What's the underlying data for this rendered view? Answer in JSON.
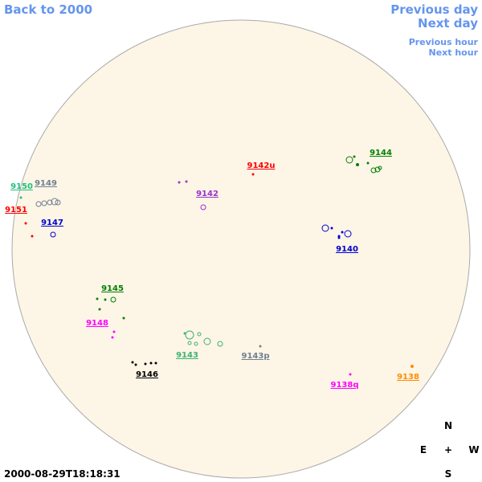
{
  "nav": {
    "back": "Back to 2000",
    "prev_day": "Previous day",
    "next_day": "Next day",
    "prev_hour": "Previous hour",
    "next_hour": "Next hour"
  },
  "regions": [
    {
      "label": "9144",
      "color": "#008000"
    },
    {
      "label": "9142u",
      "color": "#ff0000"
    },
    {
      "label": "9149",
      "color": "#708090"
    },
    {
      "label": "9150",
      "color": "#20c080"
    },
    {
      "label": "9142",
      "color": "#9932cc"
    },
    {
      "label": "9151",
      "color": "#ff0000"
    },
    {
      "label": "9147",
      "color": "#0000cd"
    },
    {
      "label": "9140",
      "color": "#0000cd"
    },
    {
      "label": "9145",
      "color": "#008000"
    },
    {
      "label": "9148",
      "color": "#ff00ff"
    },
    {
      "label": "9143",
      "color": "#3cb371"
    },
    {
      "label": "9143p",
      "color": "#708090"
    },
    {
      "label": "9146",
      "color": "#000000"
    },
    {
      "label": "9138q",
      "color": "#ff00ff"
    },
    {
      "label": "9138",
      "color": "#ff8c00"
    }
  ],
  "compass": {
    "north": "N",
    "east": "E",
    "center": "+",
    "west": "W",
    "south": "S"
  },
  "timestamp": "2000-08-29T18:18:31"
}
